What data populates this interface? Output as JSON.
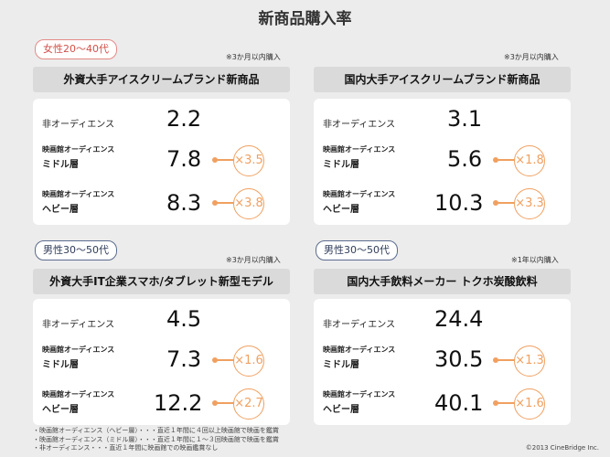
{
  "title": "新商品購入率",
  "panels": [
    {
      "tag": "女性20〜40代",
      "note": "※3か月以内購入",
      "header": "外資大手アイスクリームブランド新商品",
      "rows": [
        {
          "label_line1": "非オーディエンス",
          "label_line2": "",
          "value": "2.2",
          "ratio": ""
        },
        {
          "label_line1": "映画館オーディエンス",
          "label_line2": "ミドル層",
          "value": "7.8",
          "ratio": "×3.5"
        },
        {
          "label_line1": "映画館オーディエンス",
          "label_line2": "ヘビー層",
          "value": "8.3",
          "ratio": "×3.8"
        }
      ]
    },
    {
      "tag": "",
      "note": "※3か月以内購入",
      "header": "国内大手アイスクリームブランド新商品",
      "rows": [
        {
          "label_line1": "非オーディエンス",
          "label_line2": "",
          "value": "3.1",
          "ratio": ""
        },
        {
          "label_line1": "映画館オーディエンス",
          "label_line2": "ミドル層",
          "value": "5.6",
          "ratio": "×1.8"
        },
        {
          "label_line1": "映画館オーディエンス",
          "label_line2": "ヘビー層",
          "value": "10.3",
          "ratio": "×3.3"
        }
      ]
    },
    {
      "tag": "男性30〜50代",
      "note": "※3か月以内購入",
      "header": "外資大手IT企業スマホ/タブレット新型モデル",
      "rows": [
        {
          "label_line1": "非オーディエンス",
          "label_line2": "",
          "value": "4.5",
          "ratio": ""
        },
        {
          "label_line1": "映画館オーディエンス",
          "label_line2": "ミドル層",
          "value": "7.3",
          "ratio": "×1.6"
        },
        {
          "label_line1": "映画館オーディエンス",
          "label_line2": "ヘビー層",
          "value": "12.2",
          "ratio": "×2.7"
        }
      ]
    },
    {
      "tag": "男性30〜50代",
      "note": "※1年以内購入",
      "header": "国内大手飲料メーカー トクホ炭酸飲料",
      "rows": [
        {
          "label_line1": "非オーディエンス",
          "label_line2": "",
          "value": "24.4",
          "ratio": ""
        },
        {
          "label_line1": "映画館オーディエンス",
          "label_line2": "ミドル層",
          "value": "30.5",
          "ratio": "×1.3"
        },
        {
          "label_line1": "映画館オーディエンス",
          "label_line2": "ヘビー層",
          "value": "40.1",
          "ratio": "×1.6"
        }
      ]
    }
  ],
  "footnotes": [
    "・映画館オーディエンス（ヘビー層）・・・直近１年間に４回以上映画館で映画を鑑賞",
    "・映画館オーディエンス（ミドル層）・・・直近１年間に１〜３回映画館で映画を鑑賞",
    "・非オーディエンス・・・直近１年間に映画館での映画鑑賞なし"
  ],
  "copyright": "©2013 CineBridge Inc.",
  "colors": {
    "accent_orange": "#f0a060",
    "female_tag": "#e58a86",
    "male_tag": "#5b6b8e",
    "header_bg": "#dadada",
    "page_bg": "#ececec"
  }
}
